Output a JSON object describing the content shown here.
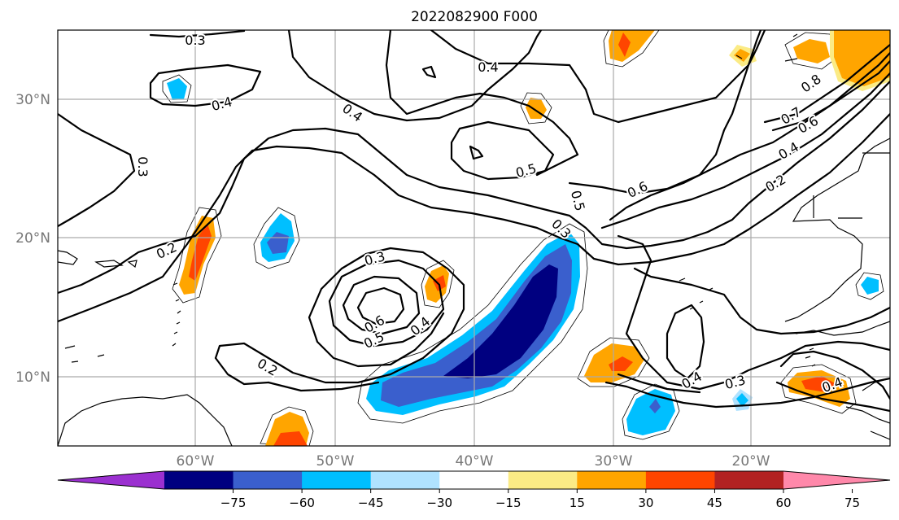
{
  "title": "2022082900 F000",
  "lat_labels": [
    "30°N",
    "20°N",
    "10°N"
  ],
  "lon_labels": [
    "60°W",
    "50°W",
    "40°W",
    "30°W",
    "20°W"
  ],
  "colorbar": {
    "ticks": [
      "−75",
      "−60",
      "−45",
      "−30",
      "−15",
      "15",
      "30",
      "45",
      "60",
      "75"
    ],
    "colors": [
      "#9b30d0",
      "#000080",
      "#3a5fcd",
      "#00bfff",
      "#b0e2ff",
      "#ffffff",
      "#fbeb85",
      "#ffa500",
      "#ff4500",
      "#b22222",
      "#ff88aa"
    ]
  },
  "contour_labels": [
    {
      "id": "c1",
      "text": "0.3"
    },
    {
      "id": "c2",
      "text": "0.4"
    },
    {
      "id": "c3",
      "text": "0.4"
    },
    {
      "id": "c4",
      "text": "0.3"
    },
    {
      "id": "c5",
      "text": "0.4"
    },
    {
      "id": "c6",
      "text": "0.5"
    },
    {
      "id": "c7",
      "text": "0.6"
    },
    {
      "id": "c8",
      "text": "0.5"
    },
    {
      "id": "c9",
      "text": "0.3"
    },
    {
      "id": "c10",
      "text": "0.2"
    },
    {
      "id": "c11",
      "text": "0.3"
    },
    {
      "id": "c12",
      "text": "0.6"
    },
    {
      "id": "c13",
      "text": "0.5"
    },
    {
      "id": "c14",
      "text": "0.4"
    },
    {
      "id": "c15",
      "text": "0.2"
    },
    {
      "id": "c16",
      "text": "0.4"
    },
    {
      "id": "c17",
      "text": "0.3"
    },
    {
      "id": "c18",
      "text": "0.4"
    },
    {
      "id": "c19",
      "text": "0.8"
    },
    {
      "id": "c20",
      "text": "0.7"
    },
    {
      "id": "c21",
      "text": "0.6"
    },
    {
      "id": "c22",
      "text": "0.4"
    },
    {
      "id": "c23",
      "text": "0.2"
    }
  ]
}
